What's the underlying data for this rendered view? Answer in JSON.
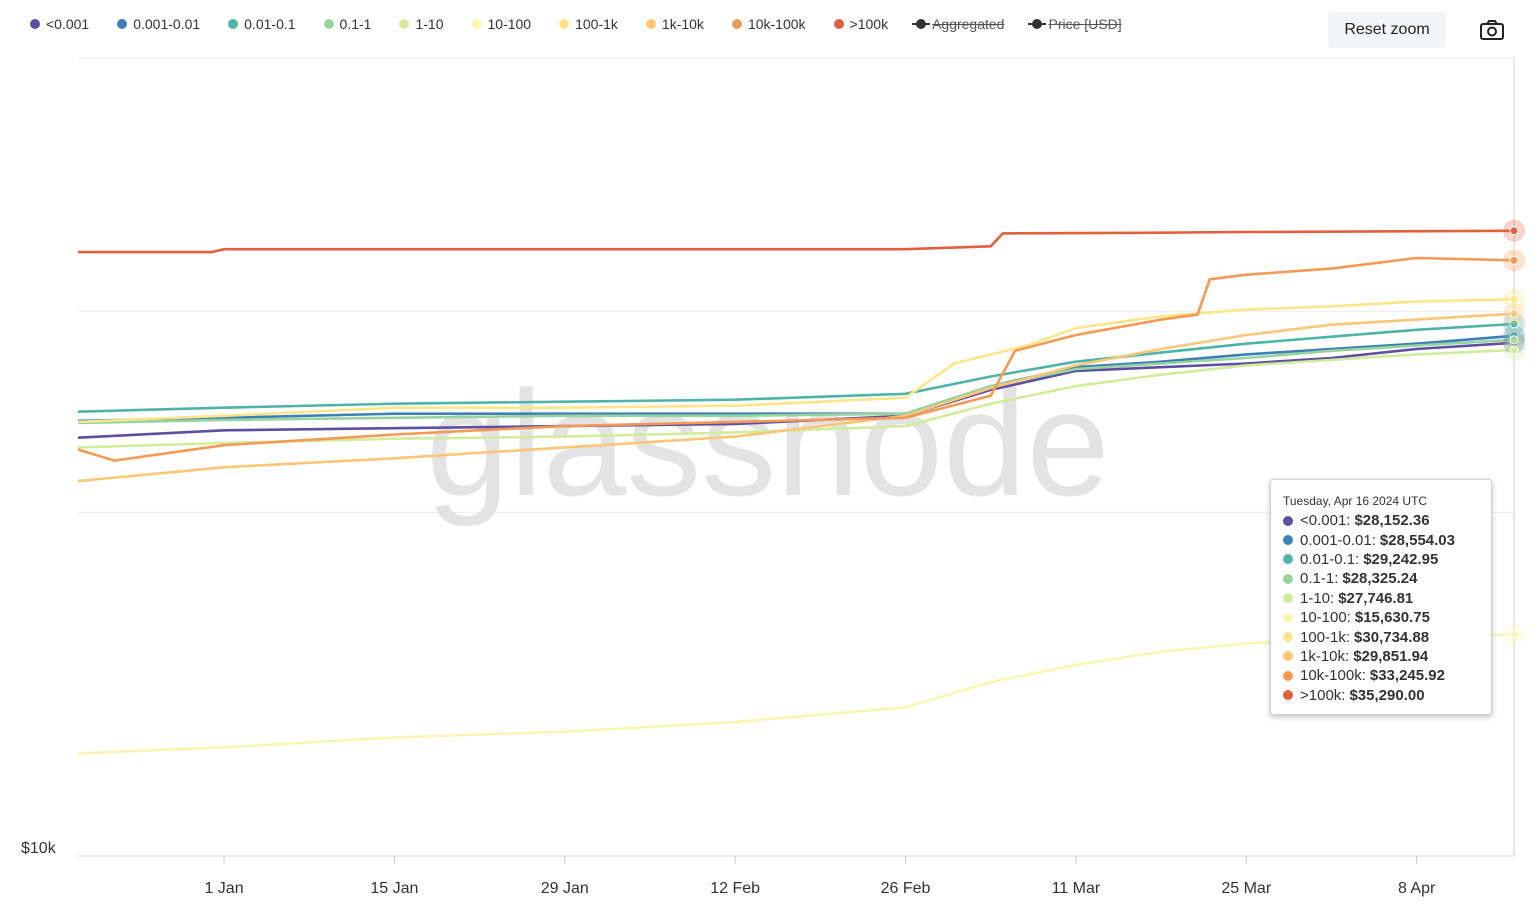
{
  "legend": [
    {
      "label": "<0.001",
      "color": "#5e4fa2",
      "enabled": true
    },
    {
      "label": "0.001-0.01",
      "color": "#3d80b8",
      "enabled": true
    },
    {
      "label": "0.01-0.1",
      "color": "#4fb3a8",
      "enabled": true
    },
    {
      "label": "0.1-1",
      "color": "#98d49e",
      "enabled": true
    },
    {
      "label": "1-10",
      "color": "#d1ec9b",
      "enabled": true
    },
    {
      "label": "10-100",
      "color": "#f8f7b2",
      "enabled": true
    },
    {
      "label": "100-1k",
      "color": "#fde68a",
      "enabled": true
    },
    {
      "label": "1k-10k",
      "color": "#fbc776",
      "enabled": true
    },
    {
      "label": "10k-100k",
      "color": "#f59a55",
      "enabled": true
    },
    {
      "label": ">100k",
      "color": "#e0613f",
      "enabled": true
    },
    {
      "label": "Aggregated",
      "color": "#333333",
      "enabled": false
    },
    {
      "label": "Price [USD]",
      "color": "#333333",
      "enabled": false
    }
  ],
  "toolbar": {
    "reset_label": "Reset zoom",
    "camera_icon": "camera-icon"
  },
  "watermark": "glassnode",
  "tooltip": {
    "date": "Tuesday, Apr 16 2024 UTC",
    "rows": [
      {
        "label": "<0.001:",
        "value": "$28,152.36",
        "color": "#5e4fa2"
      },
      {
        "label": "0.001-0.01:",
        "value": "$28,554.03",
        "color": "#3d80b8"
      },
      {
        "label": "0.01-0.1:",
        "value": "$29,242.95",
        "color": "#4fb3a8"
      },
      {
        "label": "0.1-1:",
        "value": "$28,325.24",
        "color": "#98d49e"
      },
      {
        "label": "1-10:",
        "value": "$27,746.81",
        "color": "#d1ec9b"
      },
      {
        "label": "10-100:",
        "value": "$15,630.75",
        "color": "#f8f7b2"
      },
      {
        "label": "100-1k:",
        "value": "$30,734.88",
        "color": "#fde68a"
      },
      {
        "label": "1k-10k:",
        "value": "$29,851.94",
        "color": "#fbc776"
      },
      {
        "label": "10k-100k:",
        "value": "$33,245.92",
        "color": "#f59a55"
      },
      {
        "label": ">100k:",
        "value": "$35,290.00",
        "color": "#e0613f"
      }
    ]
  },
  "chart_data": {
    "type": "line",
    "yscale": "log",
    "ytick_labels": [
      "$10k"
    ],
    "xtick_labels": [
      "1 Jan",
      "15 Jan",
      "29 Jan",
      "12 Feb",
      "26 Feb",
      "11 Mar",
      "25 Mar",
      "8 Apr"
    ],
    "xtick_dates": [
      "2024-01-01",
      "2024-01-15",
      "2024-01-29",
      "2024-02-12",
      "2024-02-26",
      "2024-03-11",
      "2024-03-25",
      "2024-04-08"
    ],
    "xlim": [
      "2023-12-20",
      "2024-04-16"
    ],
    "ylim": [
      10000,
      50000
    ],
    "series": [
      {
        "name": "<0.001",
        "color": "#5e4fa2",
        "points": [
          [
            "2023-12-20",
            23250
          ],
          [
            "2024-01-01",
            23600
          ],
          [
            "2024-01-15",
            23700
          ],
          [
            "2024-01-29",
            23800
          ],
          [
            "2024-02-12",
            23900
          ],
          [
            "2024-02-26",
            24300
          ],
          [
            "2024-03-04",
            25600
          ],
          [
            "2024-03-11",
            26600
          ],
          [
            "2024-03-18",
            26800
          ],
          [
            "2024-03-25",
            27000
          ],
          [
            "2024-04-01",
            27300
          ],
          [
            "2024-04-08",
            27800
          ],
          [
            "2024-04-16",
            28152.36
          ]
        ]
      },
      {
        "name": "0.001-0.01",
        "color": "#3d80b8",
        "points": [
          [
            "2023-12-20",
            24050
          ],
          [
            "2024-01-01",
            24200
          ],
          [
            "2024-01-15",
            24400
          ],
          [
            "2024-01-29",
            24400
          ],
          [
            "2024-02-12",
            24400
          ],
          [
            "2024-02-26",
            24400
          ],
          [
            "2024-03-04",
            25800
          ],
          [
            "2024-03-11",
            26800
          ],
          [
            "2024-03-18",
            27100
          ],
          [
            "2024-03-25",
            27500
          ],
          [
            "2024-04-01",
            27800
          ],
          [
            "2024-04-08",
            28100
          ],
          [
            "2024-04-16",
            28554.03
          ]
        ]
      },
      {
        "name": "0.01-0.1",
        "color": "#4fb3a8",
        "points": [
          [
            "2023-12-20",
            24500
          ],
          [
            "2024-01-01",
            24700
          ],
          [
            "2024-01-15",
            24900
          ],
          [
            "2024-01-29",
            25000
          ],
          [
            "2024-02-12",
            25100
          ],
          [
            "2024-02-26",
            25400
          ],
          [
            "2024-03-04",
            26300
          ],
          [
            "2024-03-11",
            27100
          ],
          [
            "2024-03-18",
            27600
          ],
          [
            "2024-03-25",
            28100
          ],
          [
            "2024-04-01",
            28500
          ],
          [
            "2024-04-08",
            28900
          ],
          [
            "2024-04-16",
            29242.95
          ]
        ]
      },
      {
        "name": "0.1-1",
        "color": "#98d49e",
        "points": [
          [
            "2023-12-20",
            23950
          ],
          [
            "2024-01-01",
            24100
          ],
          [
            "2024-01-15",
            24200
          ],
          [
            "2024-01-29",
            24300
          ],
          [
            "2024-02-12",
            24300
          ],
          [
            "2024-02-26",
            24400
          ],
          [
            "2024-03-04",
            25800
          ],
          [
            "2024-03-11",
            26700
          ],
          [
            "2024-03-18",
            27000
          ],
          [
            "2024-03-25",
            27300
          ],
          [
            "2024-04-01",
            27700
          ],
          [
            "2024-04-08",
            28000
          ],
          [
            "2024-04-16",
            28325.24
          ]
        ]
      },
      {
        "name": "1-10",
        "color": "#d1ec9b",
        "points": [
          [
            "2023-12-20",
            22800
          ],
          [
            "2024-01-01",
            23000
          ],
          [
            "2024-01-15",
            23200
          ],
          [
            "2024-01-29",
            23300
          ],
          [
            "2024-02-12",
            23500
          ],
          [
            "2024-02-26",
            23800
          ],
          [
            "2024-03-04",
            24900
          ],
          [
            "2024-03-11",
            25800
          ],
          [
            "2024-03-18",
            26400
          ],
          [
            "2024-03-25",
            26900
          ],
          [
            "2024-04-01",
            27200
          ],
          [
            "2024-04-08",
            27500
          ],
          [
            "2024-04-16",
            27746.81
          ]
        ]
      },
      {
        "name": "10-100",
        "color": "#f8f7b2",
        "points": [
          [
            "2023-12-20",
            12300
          ],
          [
            "2024-01-01",
            12450
          ],
          [
            "2024-01-15",
            12700
          ],
          [
            "2024-01-29",
            12850
          ],
          [
            "2024-02-12",
            13100
          ],
          [
            "2024-02-26",
            13500
          ],
          [
            "2024-03-04",
            14200
          ],
          [
            "2024-03-11",
            14700
          ],
          [
            "2024-03-18",
            15100
          ],
          [
            "2024-03-25",
            15350
          ],
          [
            "2024-04-01",
            15500
          ],
          [
            "2024-04-08",
            15560
          ],
          [
            "2024-04-16",
            15630.75
          ]
        ]
      },
      {
        "name": "100-1k",
        "color": "#fde68a",
        "points": [
          [
            "2023-12-20",
            24000
          ],
          [
            "2024-01-01",
            24300
          ],
          [
            "2024-01-15",
            24700
          ],
          [
            "2024-01-29",
            24700
          ],
          [
            "2024-02-12",
            24800
          ],
          [
            "2024-02-26",
            25200
          ],
          [
            "2024-03-01",
            27000
          ],
          [
            "2024-03-07",
            28000
          ],
          [
            "2024-03-11",
            29000
          ],
          [
            "2024-03-18",
            29700
          ],
          [
            "2024-03-25",
            30100
          ],
          [
            "2024-04-01",
            30300
          ],
          [
            "2024-04-08",
            30600
          ],
          [
            "2024-04-16",
            30734.88
          ]
        ]
      },
      {
        "name": "1k-10k",
        "color": "#fbc776",
        "points": [
          [
            "2023-12-20",
            21300
          ],
          [
            "2024-01-01",
            21900
          ],
          [
            "2024-01-15",
            22300
          ],
          [
            "2024-01-29",
            22800
          ],
          [
            "2024-02-12",
            23300
          ],
          [
            "2024-02-26",
            24300
          ],
          [
            "2024-03-04",
            25700
          ],
          [
            "2024-03-11",
            26900
          ],
          [
            "2024-03-18",
            27800
          ],
          [
            "2024-03-25",
            28600
          ],
          [
            "2024-04-01",
            29200
          ],
          [
            "2024-04-08",
            29500
          ],
          [
            "2024-04-16",
            29851.94
          ]
        ]
      },
      {
        "name": "10k-100k",
        "color": "#f59a55",
        "points": [
          [
            "2023-12-20",
            22700
          ],
          [
            "2023-12-23",
            22200
          ],
          [
            "2024-01-01",
            22900
          ],
          [
            "2024-01-15",
            23400
          ],
          [
            "2024-01-29",
            23800
          ],
          [
            "2024-02-12",
            24000
          ],
          [
            "2024-02-26",
            24200
          ],
          [
            "2024-03-04",
            25300
          ],
          [
            "2024-03-06",
            27700
          ],
          [
            "2024-03-11",
            28600
          ],
          [
            "2024-03-18",
            29500
          ],
          [
            "2024-03-21",
            29800
          ],
          [
            "2024-03-22",
            32000
          ],
          [
            "2024-03-25",
            32300
          ],
          [
            "2024-04-01",
            32700
          ],
          [
            "2024-04-08",
            33400
          ],
          [
            "2024-04-16",
            33245.92
          ]
        ]
      },
      {
        "name": ">100k",
        "color": "#e0613f",
        "points": [
          [
            "2023-12-20",
            33800
          ],
          [
            "2023-12-31",
            33800
          ],
          [
            "2024-01-01",
            34000
          ],
          [
            "2024-02-26",
            34000
          ],
          [
            "2024-03-04",
            34200
          ],
          [
            "2024-03-05",
            35100
          ],
          [
            "2024-03-18",
            35150
          ],
          [
            "2024-03-25",
            35200
          ],
          [
            "2024-04-16",
            35290.0
          ]
        ]
      }
    ],
    "hover_date": "2024-04-16",
    "grid": true,
    "legend_position": "top-left"
  }
}
